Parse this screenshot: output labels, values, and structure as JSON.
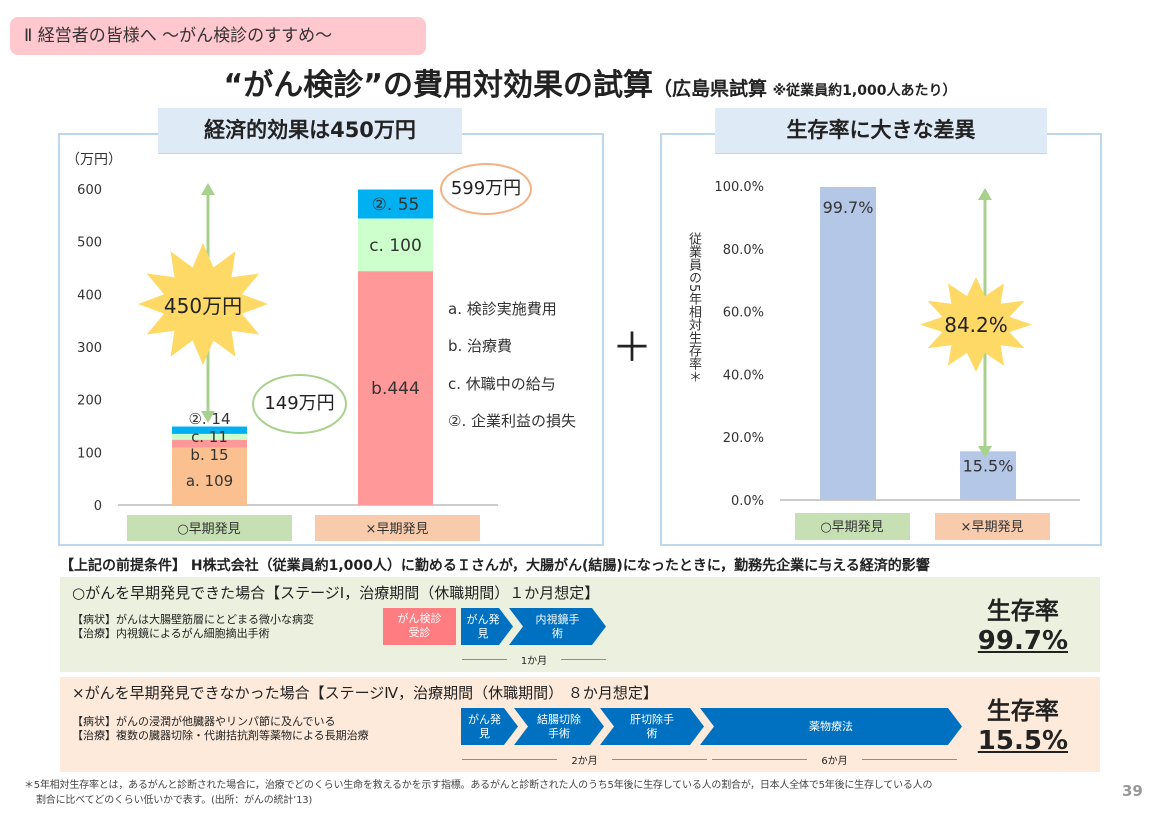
{
  "header": {
    "section_tag": "Ⅱ 経営者の皆様へ ～がん検診のすすめ～",
    "title_main": "“がん検診”の費用対効果の試算",
    "title_sub": "（広島県試算",
    "title_note": "※従業員約1,000人あたり）"
  },
  "left_panel": {
    "heading": "経済的効果は450万円",
    "plus": "＋",
    "burst": "450万円",
    "bubble_early": "149万円",
    "bubble_late": "599万円"
  },
  "right_panel": {
    "heading": "生存率に大きな差異",
    "burst": "84.2%"
  },
  "colors": {
    "a": "#FAC090",
    "b": "#FF9999",
    "c": "#CCFFCC",
    "d": "#00B0F0",
    "surv_bar": "#B4C7E7",
    "early_box": "#C6E0B4",
    "late_box": "#F8CBAD"
  },
  "chart_data": [
    {
      "type": "bar",
      "stacked": true,
      "title": "",
      "ylabel": "（万円）",
      "ylim": [
        0,
        600
      ],
      "yticks": [
        "0",
        "100",
        "200",
        "300",
        "400",
        "500",
        "600"
      ],
      "categories": [
        "○早期発見",
        "×早期発見"
      ],
      "series": [
        {
          "name": "a. 検診実施費用",
          "key": "a",
          "values": [
            109,
            0
          ],
          "labels": [
            "a. 109",
            ""
          ]
        },
        {
          "name": "b. 治療費",
          "key": "b",
          "values": [
            15,
            444
          ],
          "labels": [
            "b. 15",
            "b.444"
          ]
        },
        {
          "name": "c. 休職中の給与",
          "key": "c",
          "values": [
            11,
            100
          ],
          "labels": [
            "c. 11",
            "c. 100"
          ]
        },
        {
          "name": "②. 企業利益の損失",
          "key": "d",
          "values": [
            14,
            55
          ],
          "labels": [
            "②. 14",
            "②. 55"
          ]
        }
      ],
      "legend": "right"
    },
    {
      "type": "bar",
      "ylabel": "従業員の5年相対生存率＊",
      "ylim": [
        0,
        100
      ],
      "yticks": [
        "0.0%",
        "20.0%",
        "40.0%",
        "60.0%",
        "80.0%",
        "100.0%"
      ],
      "categories": [
        "○早期発見",
        "×早期発見"
      ],
      "values": [
        99.7,
        15.5
      ],
      "labels": [
        "99.7%",
        "15.5%"
      ]
    }
  ],
  "conditions": {
    "text": "【上記の前提条件】 H株式会社（従業員約1,000人）に勤めるＩさんが，大腸がん(結腸)になったときに，勤務先企業に与える経済的影響"
  },
  "early": {
    "heading": "○がんを早期発見できた場合【ステージⅠ，治療期間（休職期間）１か月想定】",
    "symptom": "【病状】がんは大腸壁筋層にとどまる微小な病変",
    "treatment": "【治療】内視鏡によるがん細胞摘出手術",
    "steps": [
      "がん検診受診",
      "がん発見",
      "内視鏡手術"
    ],
    "duration": "1か月",
    "surv_label": "生存率",
    "surv_value": "99.7%"
  },
  "late": {
    "heading": "×がんを早期発見できなかった場合【ステージⅣ，治療期間（休職期間） ８か月想定】",
    "symptom": "【病状】がんの浸潤が他臓器やリンパ節に及んでいる",
    "treatment": "【治療】複数の臓器切除・代謝拮抗剤等薬物による長期治療",
    "steps": [
      "がん発見",
      "結腸切除手術",
      "肝切除手術",
      "薬物療法"
    ],
    "duration1": "2か月",
    "duration2": "6か月",
    "surv_label": "生存率",
    "surv_value": "15.5%"
  },
  "footnote": {
    "line1": "＊5年相対生存率とは，あるがんと診断された場合に，治療でどのくらい生命を救えるかを示す指標。あるがんと診断された人のうち5年後に生存している人の割合が，日本人全体で5年後に生存している人の",
    "line2": "割合に比べてどのくらい低いかで表す。(出所：がんの統計’13)"
  },
  "page_number": "39"
}
